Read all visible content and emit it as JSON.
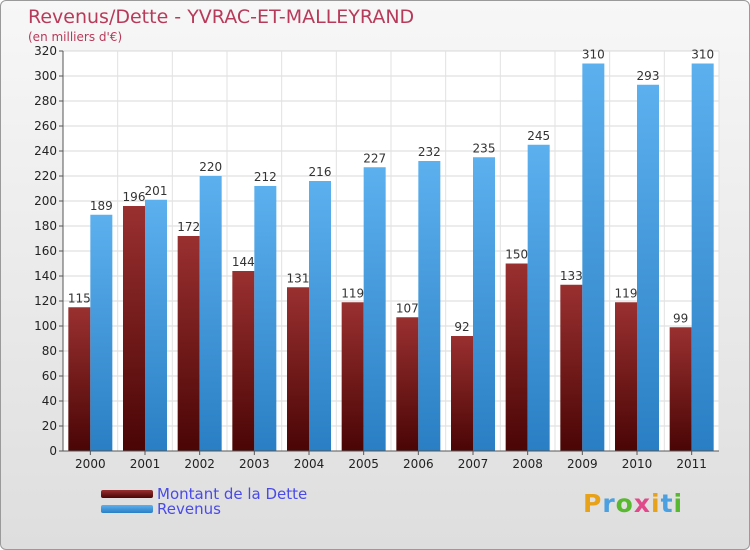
{
  "title": "Revenus/Dette - YVRAC-ET-MALLEYRAND",
  "subtitle": "(en milliers d'€)",
  "logo": {
    "text": "Proxiti",
    "colors": [
      "#e8a21a",
      "#4aa0e0",
      "#58b830",
      "#e04a8a",
      "#e8a21a",
      "#4aa0e0",
      "#58b830"
    ]
  },
  "colors": {
    "dette": "#7a1212",
    "revenus": "#3d99e0",
    "title": "#b83a5a",
    "legend_text": "#4a4ae8"
  },
  "chart_data": {
    "type": "bar",
    "title": "Revenus/Dette - YVRAC-ET-MALLEYRAND",
    "subtitle": "(en milliers d'€)",
    "categories": [
      "2000",
      "2001",
      "2002",
      "2003",
      "2004",
      "2005",
      "2006",
      "2007",
      "2008",
      "2009",
      "2010",
      "2011"
    ],
    "series": [
      {
        "name": "Montant de la Dette",
        "values": [
          115,
          196,
          172,
          144,
          131,
          119,
          107,
          92,
          150,
          133,
          119,
          99
        ]
      },
      {
        "name": "Revenus",
        "values": [
          189,
          201,
          220,
          212,
          216,
          227,
          232,
          235,
          245,
          310,
          293,
          310
        ]
      }
    ],
    "ylim": [
      0,
      320
    ],
    "ytick_step": 20,
    "grid": true,
    "legend_position": "bottom-left"
  }
}
